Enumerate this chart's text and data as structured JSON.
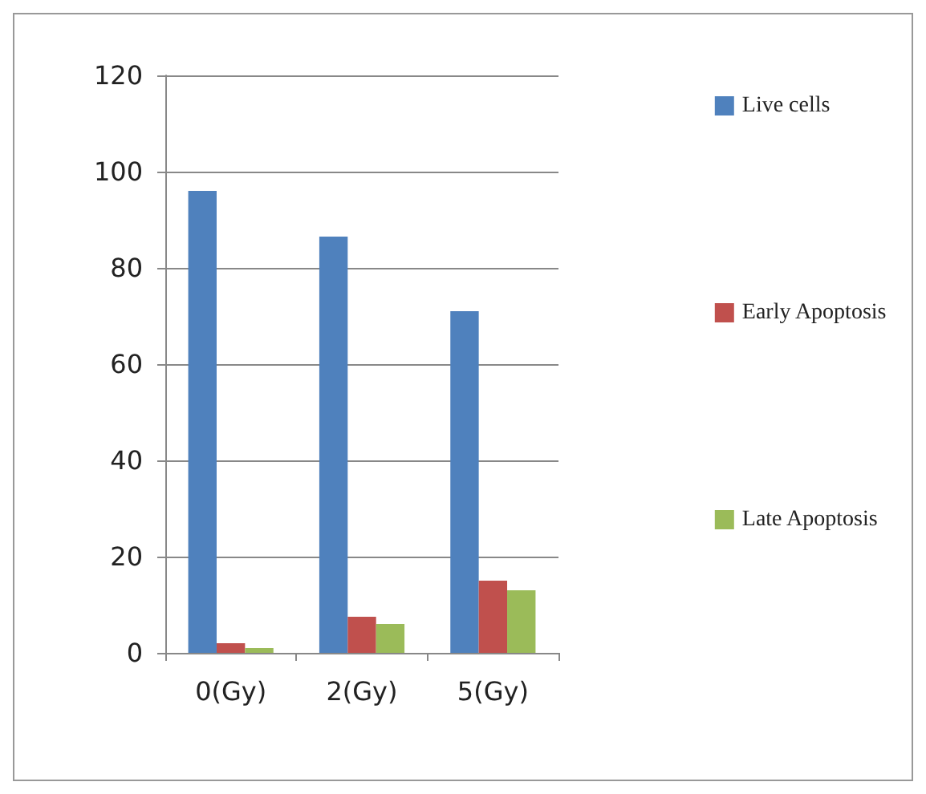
{
  "chart_data": {
    "type": "bar",
    "categories": [
      "0(Gy)",
      "2(Gy)",
      "5(Gy)"
    ],
    "series": [
      {
        "name": "Live cells",
        "color": "#4f81bd",
        "values": [
          96,
          86.5,
          71
        ]
      },
      {
        "name": "Early Apoptosis",
        "color": "#c0504d",
        "values": [
          2,
          7.5,
          15
        ]
      },
      {
        "name": "Late Apoptosis",
        "color": "#9bbb59",
        "values": [
          1,
          6,
          13
        ]
      }
    ],
    "ylim": [
      0,
      120
    ],
    "yticks": [
      0,
      20,
      40,
      60,
      80,
      100,
      120
    ],
    "grid": "y",
    "legend": "right"
  }
}
